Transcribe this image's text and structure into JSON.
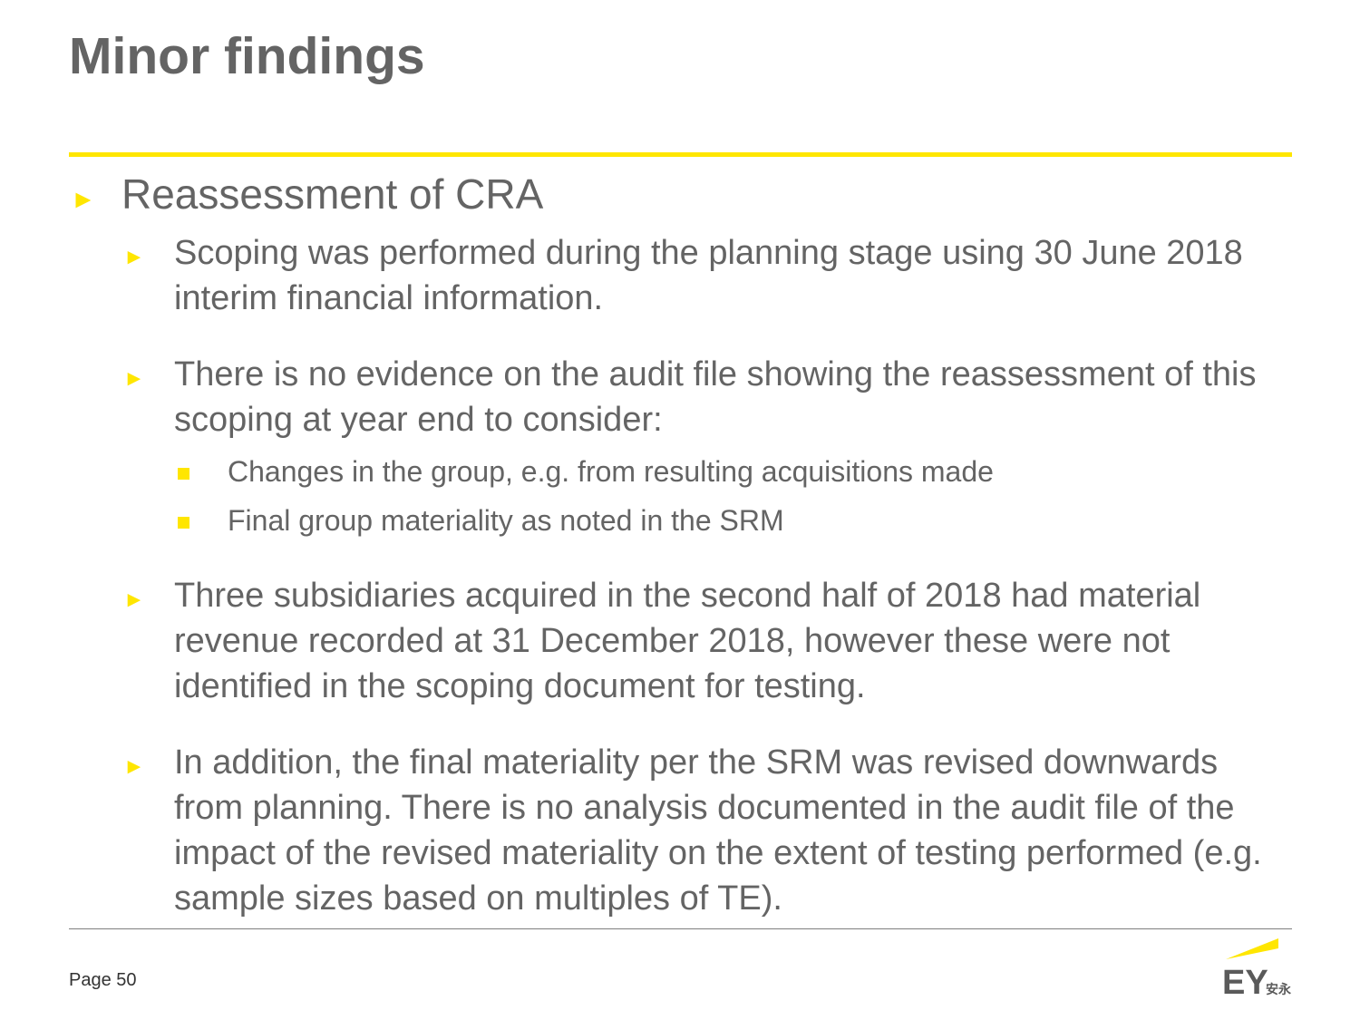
{
  "slide": {
    "title": "Minor findings",
    "section": "Reassessment of CRA",
    "bullets": [
      "Scoping was performed during the planning stage using 30 June 2018 interim financial information.",
      "There is no evidence on the audit file showing the reassessment of this scoping at year end to consider:",
      "Three subsidiaries acquired in the second half of 2018 had material revenue recorded at 31 December 2018, however these were not identified in the scoping document for testing.",
      " In addition, the final materiality per the SRM was revised downwards from planning.  There is no analysis documented in the audit file of the impact of the revised materiality on the extent of testing performed (e.g. sample sizes based on multiples of TE)."
    ],
    "sub_bullets": [
      "Changes in the group, e.g. from resulting acquisitions made",
      "Final group materiality as noted in the SRM"
    ]
  },
  "footer": {
    "page_label": "Page 50"
  },
  "logo": {
    "text": "EY",
    "chinese": "安永",
    "icon": "ey-logo-icon"
  },
  "colors": {
    "accent": "#ffe600",
    "text": "#646464",
    "logo_text": "#5a5a5a"
  }
}
